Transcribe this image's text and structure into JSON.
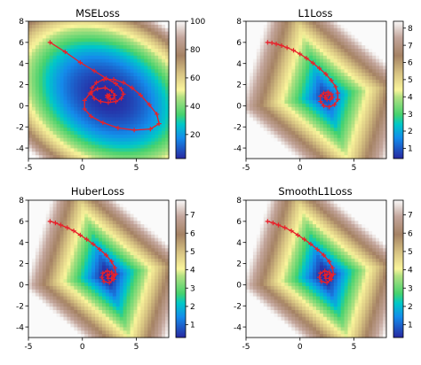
{
  "chart_data": [
    {
      "type": "heatmap",
      "title": "MSELoss",
      "xlim": [
        -5,
        8
      ],
      "ylim": [
        -5,
        8
      ],
      "xticks": [
        "-5",
        "0",
        "5"
      ],
      "yticks": [
        "-4",
        "-2",
        "0",
        "2",
        "4",
        "6",
        "8"
      ],
      "colorbar": {
        "min": 3,
        "max": 100,
        "ticks": [
          "20",
          "40",
          "60",
          "80",
          "100"
        ],
        "colormap": "terrain"
      },
      "minimum": [
        2.3,
        0.9
      ],
      "field": "quadratic",
      "trajectory_color": "#e8202a",
      "trajectory": [
        [
          -3,
          6
        ],
        [
          -1.6,
          5.1
        ],
        [
          -0.2,
          4.1
        ],
        [
          1.1,
          3.3
        ],
        [
          2.2,
          2.6
        ],
        [
          3.1,
          2.1
        ],
        [
          3.6,
          1.6
        ],
        [
          3.8,
          1.1
        ],
        [
          3.6,
          0.7
        ],
        [
          3.1,
          0.4
        ],
        [
          2.4,
          0.3
        ],
        [
          1.7,
          0.4
        ],
        [
          1.1,
          0.7
        ],
        [
          0.8,
          1.2
        ],
        [
          0.9,
          1.7
        ],
        [
          1.3,
          2.2
        ],
        [
          2.0,
          2.5
        ],
        [
          2.9,
          2.5
        ],
        [
          3.8,
          2.2
        ],
        [
          4.6,
          1.7
        ],
        [
          5.4,
          1.0
        ],
        [
          6.2,
          0.1
        ],
        [
          6.9,
          -0.8
        ],
        [
          7.1,
          -1.7
        ],
        [
          6.3,
          -2.2
        ],
        [
          4.8,
          -2.3
        ],
        [
          3.3,
          -2.1
        ],
        [
          1.9,
          -1.6
        ],
        [
          0.8,
          -1.0
        ],
        [
          0.2,
          -0.3
        ],
        [
          0.2,
          0.5
        ],
        [
          0.7,
          1.2
        ],
        [
          1.4,
          1.6
        ],
        [
          2.1,
          1.7
        ],
        [
          2.7,
          1.4
        ],
        [
          3.0,
          1.0
        ],
        [
          2.9,
          0.7
        ],
        [
          2.6,
          0.6
        ],
        [
          2.3,
          0.8
        ],
        [
          2.3,
          1.0
        ],
        [
          2.5,
          1.0
        ],
        [
          2.4,
          0.9
        ]
      ]
    },
    {
      "type": "heatmap",
      "title": "L1Loss",
      "xlim": [
        -5,
        8
      ],
      "ylim": [
        -5,
        8
      ],
      "xticks": [
        "-5",
        "0",
        "5"
      ],
      "yticks": [
        "-4",
        "-2",
        "0",
        "2",
        "4",
        "6",
        "8"
      ],
      "colorbar": {
        "min": 0.4,
        "max": 8.4,
        "ticks": [
          "1",
          "2",
          "3",
          "4",
          "5",
          "6",
          "7",
          "8"
        ],
        "colormap": "terrain"
      },
      "minimum": [
        2.3,
        0.9
      ],
      "field": "absolute",
      "trajectory_color": "#e8202a",
      "trajectory": [
        [
          -3,
          6
        ],
        [
          -2.6,
          5.95
        ],
        [
          -2.2,
          5.85
        ],
        [
          -1.7,
          5.7
        ],
        [
          -1.2,
          5.5
        ],
        [
          -0.6,
          5.25
        ],
        [
          0,
          4.9
        ],
        [
          0.6,
          4.5
        ],
        [
          1.2,
          4.05
        ],
        [
          1.8,
          3.55
        ],
        [
          2.4,
          3.0
        ],
        [
          2.9,
          2.4
        ],
        [
          3.3,
          1.8
        ],
        [
          3.5,
          1.2
        ],
        [
          3.5,
          0.6
        ],
        [
          3.2,
          0.1
        ],
        [
          2.7,
          -0.1
        ],
        [
          2.2,
          0.0
        ],
        [
          1.9,
          0.4
        ],
        [
          1.9,
          0.9
        ],
        [
          2.2,
          1.2
        ],
        [
          2.6,
          1.3
        ],
        [
          2.9,
          1.1
        ],
        [
          3.0,
          0.8
        ],
        [
          2.8,
          0.6
        ],
        [
          2.5,
          0.6
        ],
        [
          2.3,
          0.8
        ],
        [
          2.4,
          1.0
        ],
        [
          2.6,
          1.0
        ]
      ]
    },
    {
      "type": "heatmap",
      "title": "HuberLoss",
      "xlim": [
        -5,
        8
      ],
      "ylim": [
        -5,
        8
      ],
      "xticks": [
        "-5",
        "0",
        "5"
      ],
      "yticks": [
        "-4",
        "-2",
        "0",
        "2",
        "4",
        "6",
        "8"
      ],
      "colorbar": {
        "min": 0.3,
        "max": 7.8,
        "ticks": [
          "1",
          "2",
          "3",
          "4",
          "5",
          "6",
          "7"
        ],
        "colormap": "terrain"
      },
      "minimum": [
        2.3,
        0.9
      ],
      "field": "huber",
      "trajectory_color": "#e8202a",
      "trajectory": [
        [
          -3,
          6
        ],
        [
          -2.5,
          5.85
        ],
        [
          -2.0,
          5.65
        ],
        [
          -1.4,
          5.4
        ],
        [
          -0.8,
          5.1
        ],
        [
          -0.2,
          4.7
        ],
        [
          0.4,
          4.3
        ],
        [
          1.0,
          3.85
        ],
        [
          1.6,
          3.35
        ],
        [
          2.2,
          2.8
        ],
        [
          2.7,
          2.2
        ],
        [
          3.0,
          1.6
        ],
        [
          3.1,
          1.0
        ],
        [
          2.9,
          0.5
        ],
        [
          2.5,
          0.2
        ],
        [
          2.0,
          0.3
        ],
        [
          1.8,
          0.7
        ],
        [
          1.9,
          1.1
        ],
        [
          2.3,
          1.3
        ],
        [
          2.7,
          1.2
        ],
        [
          2.9,
          0.9
        ],
        [
          2.7,
          0.6
        ],
        [
          2.4,
          0.6
        ],
        [
          2.3,
          0.9
        ],
        [
          2.5,
          1.0
        ]
      ]
    },
    {
      "type": "heatmap",
      "title": "SmoothL1Loss",
      "xlim": [
        -5,
        8
      ],
      "ylim": [
        -5,
        8
      ],
      "xticks": [
        "-5",
        "0",
        "5"
      ],
      "yticks": [
        "-4",
        "-2",
        "0",
        "2",
        "4",
        "6",
        "8"
      ],
      "colorbar": {
        "min": 0.3,
        "max": 7.8,
        "ticks": [
          "1",
          "2",
          "3",
          "4",
          "5",
          "6",
          "7"
        ],
        "colormap": "terrain"
      },
      "minimum": [
        2.3,
        0.9
      ],
      "field": "huber",
      "trajectory_color": "#e8202a",
      "trajectory": [
        [
          -3,
          6
        ],
        [
          -2.5,
          5.85
        ],
        [
          -2.0,
          5.65
        ],
        [
          -1.4,
          5.4
        ],
        [
          -0.8,
          5.1
        ],
        [
          -0.2,
          4.7
        ],
        [
          0.4,
          4.3
        ],
        [
          1.0,
          3.85
        ],
        [
          1.6,
          3.35
        ],
        [
          2.2,
          2.8
        ],
        [
          2.7,
          2.2
        ],
        [
          3.0,
          1.6
        ],
        [
          3.1,
          1.0
        ],
        [
          2.9,
          0.5
        ],
        [
          2.5,
          0.2
        ],
        [
          2.0,
          0.3
        ],
        [
          1.8,
          0.7
        ],
        [
          1.9,
          1.1
        ],
        [
          2.3,
          1.3
        ],
        [
          2.7,
          1.2
        ],
        [
          2.9,
          0.9
        ],
        [
          2.7,
          0.6
        ],
        [
          2.4,
          0.6
        ],
        [
          2.3,
          0.9
        ],
        [
          2.5,
          1.0
        ]
      ]
    }
  ]
}
